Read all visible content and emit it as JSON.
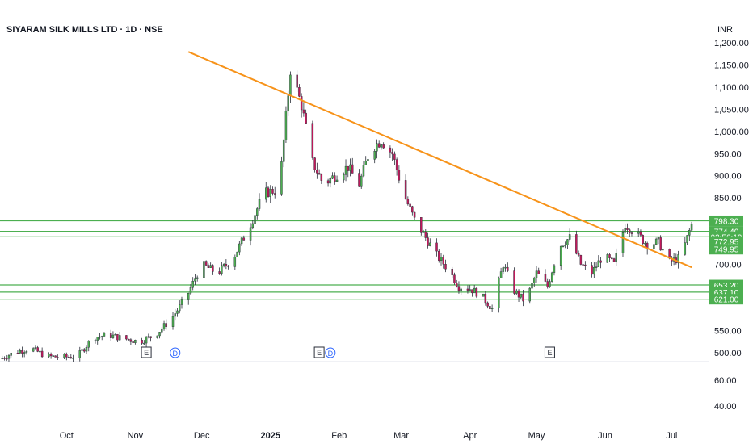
{
  "header": {
    "title": "SIYARAM SILK MILLS LTD · 1D · NSE",
    "currency": "INR"
  },
  "colors": {
    "up": "#4caf50",
    "down": "#c2185b",
    "trendline": "#f7931a",
    "hline": "#4caf50",
    "grid": "#f0f3fa",
    "axis_text": "#131722"
  },
  "chart_data": {
    "type": "candlestick",
    "price_axis_ticks": [
      "1,200.00",
      "1,150.00",
      "1,100.00",
      "1,050.00",
      "1,000.00",
      "950.00",
      "900.00",
      "850.00",
      "750.00",
      "700.00",
      "550.00",
      "500.00"
    ],
    "volume_axis_ticks": [
      "60.00",
      "40.00"
    ],
    "x_axis_labels": [
      "Oct",
      "Nov",
      "Dec",
      "2025",
      "Feb",
      "Mar",
      "Apr",
      "May",
      "Jun",
      "Jul"
    ],
    "ylim": [
      480,
      1215
    ],
    "horizontal_levels": [
      {
        "price": 798.3,
        "label": "798.30"
      },
      {
        "price": 774.4,
        "label": "774.40"
      },
      {
        "price": 762.0,
        "label": "03:56:19"
      },
      {
        "price": 653.2,
        "label": "653.20"
      },
      {
        "price": 637.1,
        "label": "637.10"
      },
      {
        "price": 621.0,
        "label": "621.00"
      }
    ],
    "price_tags": [
      {
        "price": 751.5,
        "label": "772.95"
      },
      {
        "price": 734.0,
        "label": "749.95"
      }
    ],
    "trendline": [
      {
        "date": "2024-11-25",
        "price": 1180
      },
      {
        "date": "2025-07-10",
        "price": 693
      }
    ],
    "event_markers": [
      {
        "date": "2024-11-06",
        "label": "E"
      },
      {
        "date": "2024-11-19",
        "label": "D"
      },
      {
        "date": "2025-01-23",
        "label": "E"
      },
      {
        "date": "2025-01-28",
        "label": "D"
      },
      {
        "date": "2025-05-07",
        "label": "E"
      }
    ],
    "candles_key_points": [
      [
        "2024-09-01",
        486
      ],
      [
        "2024-09-08",
        502
      ],
      [
        "2024-09-15",
        510
      ],
      [
        "2024-09-22",
        492
      ],
      [
        "2024-09-29",
        490
      ],
      [
        "2024-10-06",
        492
      ],
      [
        "2024-10-13",
        535
      ],
      [
        "2024-10-20",
        540
      ],
      [
        "2024-10-27",
        532
      ],
      [
        "2024-11-03",
        525
      ],
      [
        "2024-11-10",
        540
      ],
      [
        "2024-11-17",
        575
      ],
      [
        "2024-11-24",
        625
      ],
      [
        "2024-12-01",
        700
      ],
      [
        "2024-12-08",
        680
      ],
      [
        "2024-12-15",
        712
      ],
      [
        "2024-12-22",
        780
      ],
      [
        "2024-12-29",
        860
      ],
      [
        "2025-01-05",
        870
      ],
      [
        "2025-01-10",
        1140
      ],
      [
        "2025-01-15",
        1060
      ],
      [
        "2025-01-20",
        930
      ],
      [
        "2025-01-25",
        880
      ],
      [
        "2025-01-30",
        900
      ],
      [
        "2025-02-05",
        920
      ],
      [
        "2025-02-10",
        880
      ],
      [
        "2025-02-15",
        960
      ],
      [
        "2025-02-20",
        980
      ],
      [
        "2025-02-25",
        950
      ],
      [
        "2025-03-02",
        860
      ],
      [
        "2025-03-07",
        800
      ],
      [
        "2025-03-12",
        760
      ],
      [
        "2025-03-17",
        720
      ],
      [
        "2025-03-22",
        690
      ],
      [
        "2025-03-27",
        650
      ],
      [
        "2025-04-01",
        645
      ],
      [
        "2025-04-06",
        630
      ],
      [
        "2025-04-11",
        600
      ],
      [
        "2025-04-16",
        700
      ],
      [
        "2025-04-21",
        640
      ],
      [
        "2025-04-26",
        615
      ],
      [
        "2025-05-01",
        680
      ],
      [
        "2025-05-06",
        650
      ],
      [
        "2025-05-11",
        740
      ],
      [
        "2025-05-16",
        760
      ],
      [
        "2025-05-21",
        700
      ],
      [
        "2025-05-26",
        680
      ],
      [
        "2025-05-31",
        720
      ],
      [
        "2025-06-05",
        700
      ],
      [
        "2025-06-10",
        790
      ],
      [
        "2025-06-15",
        770
      ],
      [
        "2025-06-20",
        745
      ],
      [
        "2025-06-25",
        750
      ],
      [
        "2025-06-30",
        705
      ],
      [
        "2025-07-05",
        715
      ],
      [
        "2025-07-10",
        790
      ]
    ]
  }
}
